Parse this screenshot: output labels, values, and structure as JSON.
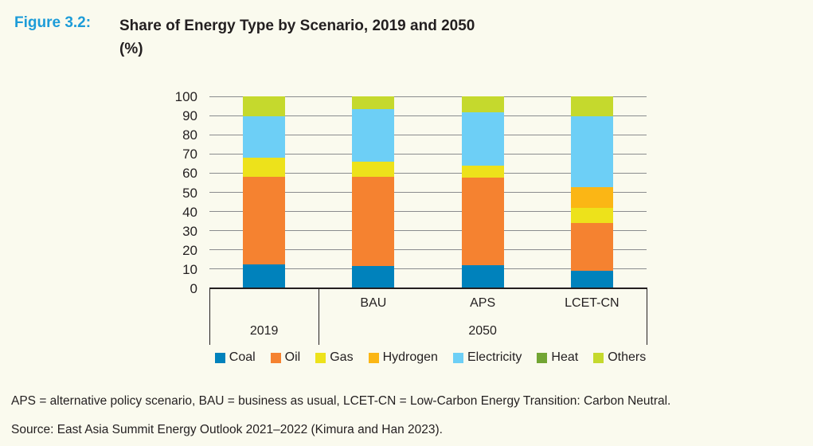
{
  "header": {
    "figure_label": "Figure 3.2:",
    "title": "Share of Energy Type by Scenario, 2019 and 2050",
    "unit": "(%)"
  },
  "chart_data": {
    "type": "bar",
    "subtype": "stacked-vertical",
    "categories": [
      "2019",
      "BAU",
      "APS",
      "LCET-CN"
    ],
    "series": [
      {
        "name": "Coal",
        "color": "#0082bc",
        "values": [
          12.5,
          11.5,
          12.0,
          9.0
        ]
      },
      {
        "name": "Oil",
        "color": "#f58230",
        "values": [
          45.5,
          46.5,
          45.5,
          25.0
        ]
      },
      {
        "name": "Gas",
        "color": "#ede21b",
        "values": [
          10.0,
          8.0,
          6.5,
          8.0
        ]
      },
      {
        "name": "Hydrogen",
        "color": "#fbb615",
        "values": [
          0.0,
          0.0,
          0.0,
          10.5
        ]
      },
      {
        "name": "Electricity",
        "color": "#6dcff6",
        "values": [
          21.5,
          27.5,
          27.5,
          37.0
        ]
      },
      {
        "name": "Heat",
        "color": "#72a533",
        "values": [
          0.0,
          0.0,
          0.0,
          0.0
        ]
      },
      {
        "name": "Others",
        "color": "#c5d92d",
        "values": [
          10.5,
          6.5,
          8.5,
          10.5
        ]
      }
    ],
    "ylim": [
      0,
      100
    ],
    "ytick_step": 10,
    "grid": "horizontal",
    "legend_position": "bottom",
    "x_axis_groups": {
      "scenario_row": [
        "",
        "BAU",
        "APS",
        "LCET-CN"
      ],
      "year_left": "2019",
      "year_right": "2050"
    },
    "title": "Share of Energy Type by Scenario, 2019 and 2050",
    "ylabel": "%",
    "xlabel": ""
  },
  "footnotes": {
    "abbreviations": "APS = alternative policy scenario, BAU = business as usual, LCET-CN = Low-Carbon Energy Transition: Carbon Neutral.",
    "source": "Source: East Asia Summit Energy Outlook 2021–2022 (Kimura and Han 2023)."
  },
  "colors": {
    "background": "#fafaee",
    "figure_label_blue": "#1d9cd8",
    "text": "#231f20",
    "gridline": "#8a8c8e",
    "axis": "#231f20"
  }
}
